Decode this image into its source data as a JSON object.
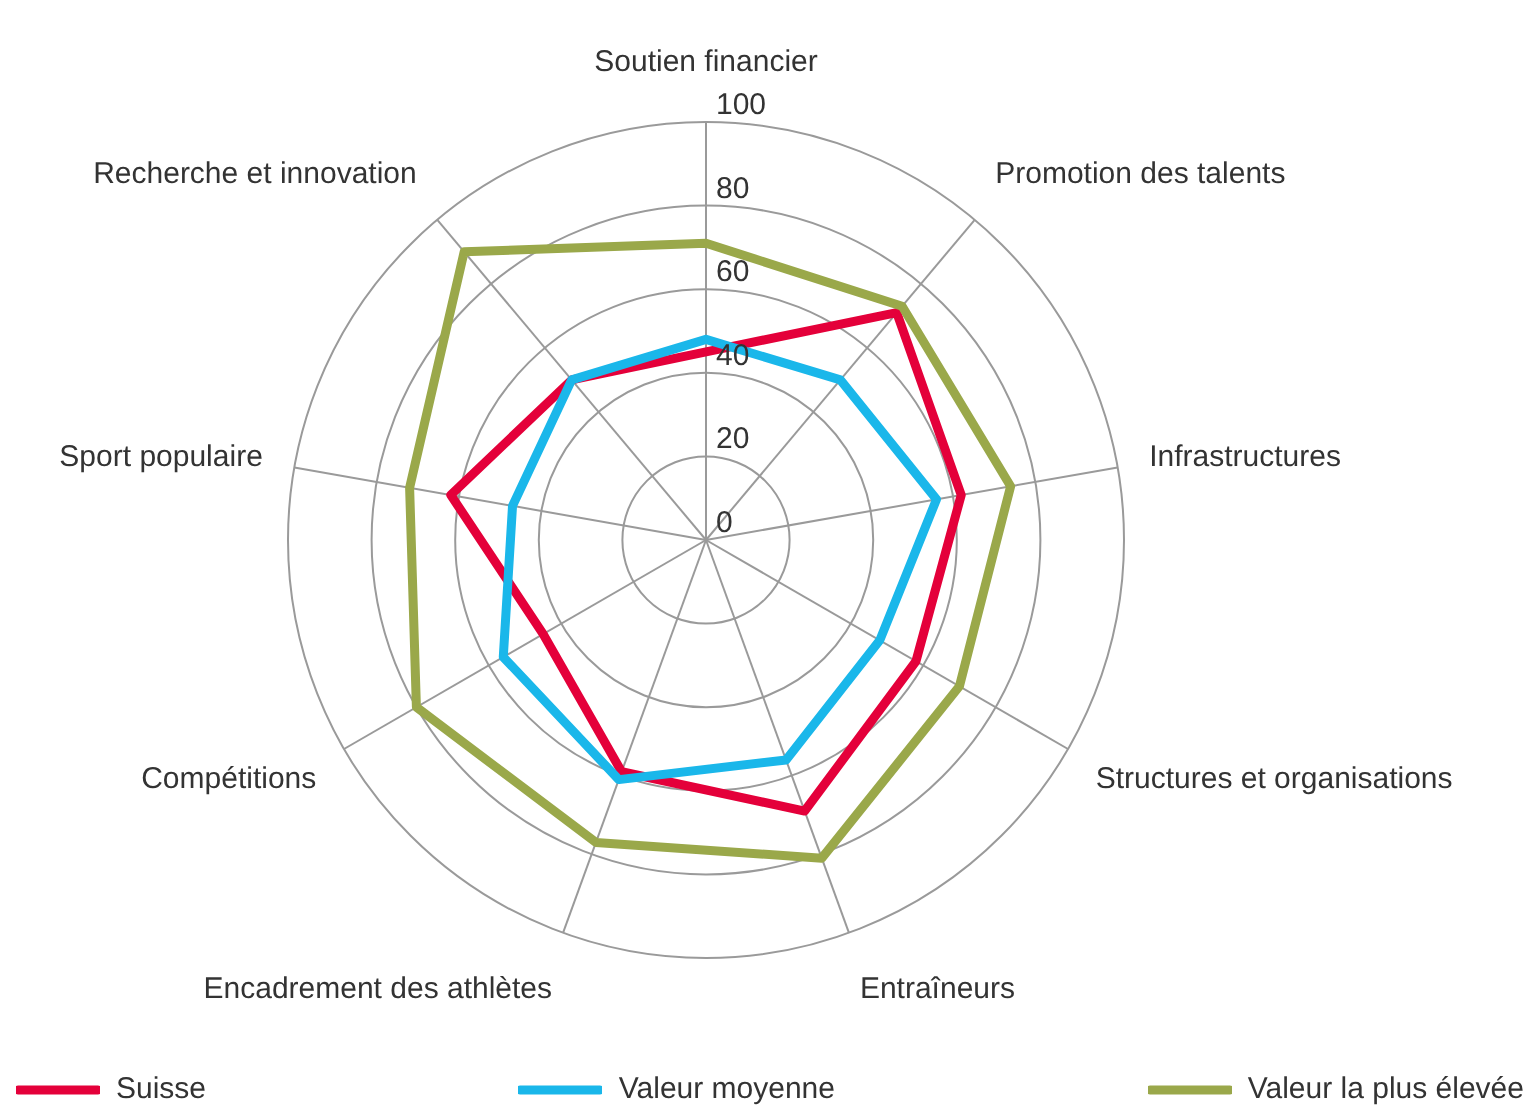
{
  "chart_data": {
    "type": "radar",
    "categories": [
      "Soutien financier",
      "Promotion des talents",
      "Infrastructures",
      "Structures et organisations",
      "Entraîneurs",
      "Encadrement des athlètes",
      "Compétitions",
      "Sport populaire",
      "Recherche et innovation"
    ],
    "series": [
      {
        "name": "Suisse",
        "color": "#e4003a",
        "values": [
          45,
          71,
          62,
          58,
          69,
          59,
          45,
          62,
          50
        ]
      },
      {
        "name": "Valeur moyenne",
        "color": "#1ab7ea",
        "values": [
          48,
          50,
          56,
          48,
          56,
          61,
          56,
          47,
          50
        ]
      },
      {
        "name": "Valeur la plus élevée",
        "color": "#9aa84a",
        "values": [
          71,
          73,
          74,
          70,
          81,
          77,
          80,
          72,
          90
        ]
      }
    ],
    "ylim": [
      0,
      100
    ],
    "yticks": [
      0,
      20,
      40,
      60,
      80,
      100
    ],
    "grid": true,
    "legend": "bottom",
    "marker": "none",
    "line_style": "solid"
  }
}
